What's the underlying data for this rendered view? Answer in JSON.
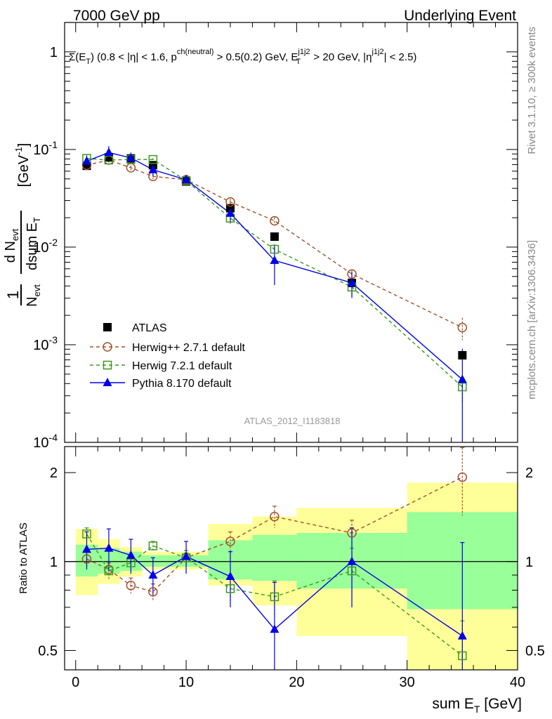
{
  "header": {
    "left": "7000 GeV pp",
    "right": "Underlying Event",
    "cut_text": "Σ(E_T) (0.8 < |η| < 1.6, p^ch(neutral) > 0.5(0.2) GeV, E_T^j1j2 > 20 GeV, |η^j1j2| < 2.5)",
    "side_top": "Rivet 3.1.10, ≥ 300k events",
    "side_bottom": "mcplots.cern.ch [arXiv:1306.3436]",
    "watermark": "ATLAS_2012_I1183818"
  },
  "axes": {
    "ylabel_main": "1/N_evt dN_evt/dsum E_T [GeV^-1]",
    "ylabel_ratio": "Ratio to ATLAS",
    "xlabel": "sum E_T [GeV]",
    "x_ticks": [
      "0",
      "10",
      "20",
      "30",
      "40"
    ],
    "y_ticks_main": [
      "10^-4",
      "10^-3",
      "10^-2",
      "10^-1",
      "1"
    ],
    "y_ticks_ratio": [
      "0.5",
      "1",
      "2"
    ]
  },
  "colors": {
    "atlas": "#000000",
    "herwigpp": "#a0522d",
    "herwig7": "#3c9a1e",
    "pythia": "#0000e6",
    "band_inner": "#99ff99",
    "band_outer": "#ffff99"
  },
  "chart_data": {
    "type": "scatter",
    "xlim": [
      -1,
      40
    ],
    "ylim_main": [
      0.0001,
      2
    ],
    "ylim_ratio": [
      0.43,
      2.45
    ],
    "main_yscale": "log",
    "ratio_yscale": "log",
    "legend_position": "lower-left",
    "x": [
      1,
      3,
      5,
      7,
      10,
      14,
      18,
      25,
      35
    ],
    "bin_edges": [
      0,
      2,
      4,
      6,
      8,
      12,
      16,
      20,
      30,
      40
    ],
    "series": [
      {
        "name": "ATLAS",
        "marker": "square-filled",
        "values": [
          0.068,
          0.083,
          0.081,
          0.069,
          0.047,
          0.025,
          0.0128,
          0.0043,
          0.00078
        ],
        "ratio": [
          1,
          1,
          1,
          1,
          1,
          1,
          1,
          1,
          1
        ]
      },
      {
        "name": "Herwig++ 2.7.1 default",
        "marker": "circle-open",
        "dash": true,
        "values": [
          0.069,
          0.078,
          0.065,
          0.053,
          0.049,
          0.029,
          0.0186,
          0.0053,
          0.0015
        ],
        "ratio": [
          1.02,
          0.94,
          0.83,
          0.79,
          1.03,
          1.17,
          1.42,
          1.25,
          1.93
        ],
        "ratio_err": [
          0.07,
          0.05,
          0.05,
          0.05,
          0.06,
          0.09,
          0.12,
          0.13,
          0.5
        ]
      },
      {
        "name": "Herwig 7.2.1 default",
        "marker": "square-open",
        "dash": true,
        "values": [
          0.081,
          0.078,
          0.079,
          0.079,
          0.048,
          0.0198,
          0.0095,
          0.0039,
          0.00037
        ],
        "ratio": [
          1.24,
          0.93,
          0.99,
          1.13,
          1.03,
          0.81,
          0.76,
          0.93,
          0.48
        ],
        "ratio_err": [
          0.06,
          0.06,
          0.05,
          0.04,
          0.04,
          0.07,
          0.1,
          0.18,
          0.15
        ]
      },
      {
        "name": "Pythia 8.170 default",
        "marker": "triangle-filled",
        "values": [
          0.076,
          0.093,
          0.082,
          0.062,
          0.049,
          0.0222,
          0.0073,
          0.0043,
          0.00044
        ],
        "ratio": [
          1.1,
          1.11,
          1.05,
          0.9,
          1.04,
          0.89,
          0.59,
          1,
          0.56
        ],
        "ratio_err": [
          0.16,
          0.18,
          0.14,
          0.13,
          0.13,
          0.19,
          0.26,
          0.3,
          0.6
        ]
      }
    ],
    "atlas_err_band": {
      "stat": [
        [
          0.89,
          1.14
        ],
        [
          0.91,
          1.11
        ],
        [
          0.93,
          1.08
        ],
        [
          0.96,
          1.05
        ],
        [
          0.96,
          1.05
        ],
        [
          0.87,
          1.18
        ],
        [
          0.86,
          1.23
        ],
        [
          0.81,
          1.25
        ],
        [
          0.69,
          1.47
        ]
      ],
      "total": [
        [
          0.77,
          1.29
        ],
        [
          0.84,
          1.19
        ],
        [
          0.89,
          1.12
        ],
        [
          0.94,
          1.08
        ],
        [
          0.94,
          1.08
        ],
        [
          0.83,
          1.34
        ],
        [
          0.71,
          1.42
        ],
        [
          0.56,
          1.52
        ],
        [
          0.31,
          1.85
        ]
      ]
    }
  }
}
